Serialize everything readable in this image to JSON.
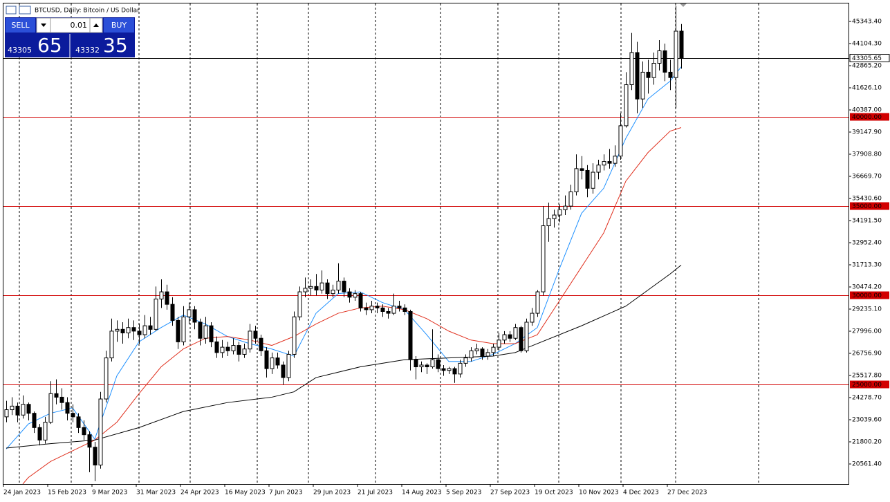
{
  "chart_data": {
    "type": "candlestick",
    "title": "BTCUSD, Daily:  Bitcoin / US Dollar",
    "categories": [
      "24 Jan 2023",
      null,
      null,
      null,
      null,
      null,
      null,
      null,
      "15 Feb 2023",
      null,
      null,
      null,
      null,
      null,
      null,
      null,
      "9 Mar 2023",
      null,
      null,
      null,
      null,
      null,
      null,
      null,
      "31 Mar 2023",
      null,
      null,
      null,
      null,
      null,
      null,
      null,
      "24 Apr 2023",
      null,
      null,
      null,
      null,
      null,
      null,
      null,
      "16 May 2023",
      null,
      null,
      null,
      null,
      null,
      null,
      null,
      "7 Jun 2023",
      null,
      null,
      null,
      null,
      null,
      null,
      null,
      "29 Jun 2023",
      null,
      null,
      null,
      null,
      null,
      null,
      null,
      "21 Jul 2023",
      null,
      null,
      null,
      null,
      null,
      null,
      null,
      "14 Aug 2023",
      null,
      null,
      null,
      null,
      null,
      null,
      null,
      "5 Sep 2023",
      null,
      null,
      null,
      null,
      null,
      null,
      null,
      "27 Sep 2023",
      null,
      null,
      null,
      null,
      null,
      null,
      null,
      "19 Oct 2023",
      null,
      null,
      null,
      null,
      null,
      null,
      null,
      "10 Nov 2023",
      null,
      null,
      null,
      null,
      null,
      null,
      null,
      "4 Dec 2023",
      null,
      null,
      null,
      null,
      null,
      null,
      null,
      "27 Dec 2023",
      null,
      null
    ],
    "ohlc": [
      [
        23200,
        24100,
        22900,
        23600
      ],
      [
        23600,
        24300,
        23300,
        23800
      ],
      [
        23800,
        24000,
        22900,
        23300
      ],
      [
        23300,
        24400,
        23100,
        23900
      ],
      [
        23900,
        24000,
        23000,
        23400
      ],
      [
        23400,
        23500,
        22300,
        22600
      ],
      [
        22600,
        22800,
        21600,
        21900
      ],
      [
        21900,
        23200,
        21700,
        22900
      ],
      [
        22900,
        25200,
        22800,
        24500
      ],
      [
        24500,
        25300,
        23900,
        24300
      ],
      [
        24300,
        24800,
        23600,
        24000
      ],
      [
        24000,
        24300,
        23000,
        23400
      ],
      [
        23400,
        23900,
        22900,
        23200
      ],
      [
        23200,
        23400,
        22300,
        22600
      ],
      [
        22600,
        23000,
        21900,
        22200
      ],
      [
        22200,
        22400,
        20100,
        21500
      ],
      [
        21500,
        21800,
        19600,
        20500
      ],
      [
        20500,
        24600,
        20300,
        24200
      ],
      [
        24200,
        26900,
        24000,
        26500
      ],
      [
        26500,
        28700,
        26300,
        28000
      ],
      [
        28000,
        28600,
        27400,
        28100
      ],
      [
        28100,
        28500,
        27300,
        27900
      ],
      [
        27900,
        28700,
        27600,
        28200
      ],
      [
        28200,
        28600,
        27500,
        28000
      ],
      [
        28000,
        28400,
        27300,
        27800
      ],
      [
        27800,
        28900,
        27600,
        28300
      ],
      [
        28300,
        28800,
        27800,
        28100
      ],
      [
        28100,
        30500,
        28000,
        29800
      ],
      [
        29800,
        30900,
        29300,
        30200
      ],
      [
        30200,
        30600,
        29200,
        29500
      ],
      [
        29500,
        29900,
        28300,
        28600
      ],
      [
        28600,
        28800,
        27000,
        27400
      ],
      [
        27400,
        29400,
        27200,
        28800
      ],
      [
        28800,
        29600,
        28400,
        29200
      ],
      [
        29200,
        29400,
        28100,
        28500
      ],
      [
        28500,
        28700,
        27200,
        27600
      ],
      [
        27600,
        28800,
        27300,
        28300
      ],
      [
        28300,
        28500,
        27100,
        27400
      ],
      [
        27400,
        27700,
        26500,
        26800
      ],
      [
        26800,
        27500,
        26500,
        27100
      ],
      [
        27100,
        27400,
        26600,
        26900
      ],
      [
        26900,
        27600,
        26700,
        27200
      ],
      [
        27200,
        27400,
        26300,
        26700
      ],
      [
        26700,
        27300,
        26500,
        27000
      ],
      [
        27000,
        28400,
        26800,
        28000
      ],
      [
        28000,
        28300,
        27300,
        27600
      ],
      [
        27600,
        27800,
        26600,
        26900
      ],
      [
        26900,
        27100,
        25400,
        25900
      ],
      [
        25900,
        26800,
        25600,
        26500
      ],
      [
        26500,
        26800,
        25900,
        26100
      ],
      [
        26100,
        26300,
        25000,
        25400
      ],
      [
        25400,
        26900,
        25200,
        26700
      ],
      [
        26700,
        29100,
        26500,
        28800
      ],
      [
        28800,
        30500,
        28600,
        30200
      ],
      [
        30200,
        31000,
        29900,
        30400
      ],
      [
        30400,
        30900,
        30000,
        30500
      ],
      [
        30500,
        31200,
        30000,
        30300
      ],
      [
        30300,
        31400,
        30100,
        30700
      ],
      [
        30700,
        30900,
        29800,
        30100
      ],
      [
        30100,
        30600,
        29900,
        30300
      ],
      [
        30300,
        31800,
        30100,
        30800
      ],
      [
        30800,
        31000,
        29900,
        30200
      ],
      [
        30200,
        30400,
        29600,
        29900
      ],
      [
        29900,
        30300,
        29700,
        30100
      ],
      [
        30100,
        30200,
        29100,
        29300
      ],
      [
        29300,
        29600,
        28900,
        29200
      ],
      [
        29200,
        29700,
        29000,
        29400
      ],
      [
        29400,
        29600,
        29000,
        29300
      ],
      [
        29300,
        29500,
        28800,
        29100
      ],
      [
        29100,
        29300,
        28700,
        29000
      ],
      [
        29000,
        30100,
        28900,
        29400
      ],
      [
        29400,
        29700,
        29100,
        29300
      ],
      [
        29300,
        29500,
        28900,
        29100
      ],
      [
        29100,
        29200,
        25800,
        26400
      ],
      [
        26400,
        26600,
        25300,
        26000
      ],
      [
        26000,
        26300,
        25700,
        26100
      ],
      [
        26100,
        26200,
        25600,
        26000
      ],
      [
        26000,
        28100,
        25900,
        26400
      ],
      [
        26400,
        26700,
        25700,
        25900
      ],
      [
        25900,
        26100,
        25500,
        25800
      ],
      [
        25800,
        26000,
        25600,
        25900
      ],
      [
        25900,
        26000,
        25100,
        25600
      ],
      [
        25600,
        26400,
        25400,
        26200
      ],
      [
        26200,
        26700,
        26000,
        26500
      ],
      [
        26500,
        27100,
        26300,
        26900
      ],
      [
        26900,
        27300,
        26700,
        27000
      ],
      [
        27000,
        27100,
        26400,
        26600
      ],
      [
        26600,
        27000,
        26400,
        26800
      ],
      [
        26800,
        27300,
        26600,
        27100
      ],
      [
        27100,
        27900,
        26900,
        27500
      ],
      [
        27500,
        28000,
        27300,
        27800
      ],
      [
        27800,
        28000,
        27400,
        27600
      ],
      [
        27600,
        28400,
        27500,
        28200
      ],
      [
        28200,
        28300,
        26800,
        26900
      ],
      [
        26900,
        28700,
        26800,
        28500
      ],
      [
        28500,
        29300,
        28300,
        29000
      ],
      [
        29000,
        30300,
        28800,
        30200
      ],
      [
        30200,
        35000,
        30000,
        33900
      ],
      [
        33900,
        35200,
        33000,
        34300
      ],
      [
        34300,
        34800,
        33800,
        34500
      ],
      [
        34500,
        35100,
        34100,
        34800
      ],
      [
        34800,
        35600,
        34500,
        35000
      ],
      [
        35000,
        36200,
        34800,
        35800
      ],
      [
        35800,
        37900,
        35600,
        37100
      ],
      [
        37100,
        37800,
        36500,
        37000
      ],
      [
        37000,
        37300,
        35500,
        36000
      ],
      [
        36000,
        37400,
        35700,
        36900
      ],
      [
        36900,
        37600,
        36500,
        37300
      ],
      [
        37300,
        37900,
        37000,
        37500
      ],
      [
        37500,
        38200,
        37100,
        37400
      ],
      [
        37400,
        38400,
        37200,
        37800
      ],
      [
        37800,
        40200,
        37600,
        39500
      ],
      [
        39500,
        42500,
        39400,
        41800
      ],
      [
        41800,
        44700,
        41500,
        43600
      ],
      [
        43600,
        44200,
        40200,
        41000
      ],
      [
        41000,
        43100,
        40500,
        42500
      ],
      [
        42500,
        43200,
        41300,
        42200
      ],
      [
        42200,
        43600,
        41800,
        43000
      ],
      [
        43000,
        44300,
        42600,
        43700
      ],
      [
        43700,
        44100,
        42000,
        42500
      ],
      [
        42500,
        43200,
        41500,
        42200
      ],
      [
        42200,
        46200,
        40500,
        44800
      ],
      [
        44800,
        45200,
        42700,
        43300
      ]
    ],
    "bull_color": "#ffffff",
    "bear_color": "#000000",
    "wick_color": "#000000",
    "overlays": [
      {
        "color": "#1e90ff",
        "x": [
          0,
          4,
          8,
          12,
          16,
          20,
          24,
          28,
          32,
          36,
          40,
          44,
          48,
          52,
          56,
          60,
          64,
          68,
          72,
          76,
          80,
          84,
          88,
          92,
          96,
          100,
          104,
          108,
          112,
          116,
          120,
          122
        ],
        "values": [
          21400,
          22800,
          23400,
          23700,
          21950,
          25500,
          27400,
          28200,
          28900,
          28400,
          27700,
          27300,
          27000,
          26600,
          29000,
          30100,
          30200,
          29600,
          29200,
          27800,
          26300,
          26300,
          26700,
          27300,
          28200,
          31500,
          34600,
          36000,
          38800,
          41000,
          42000,
          42800
        ]
      },
      {
        "color": "#e0301e",
        "x": [
          3,
          4,
          8,
          12,
          16,
          20,
          24,
          28,
          32,
          36,
          40,
          44,
          48,
          52,
          56,
          60,
          64,
          68,
          72,
          76,
          80,
          84,
          88,
          92,
          96,
          100,
          104,
          108,
          112,
          116,
          120,
          122
        ],
        "values": [
          19440,
          19800,
          20700,
          21300,
          21900,
          22900,
          24500,
          26000,
          27000,
          27600,
          27700,
          27500,
          27200,
          27700,
          28400,
          29000,
          29300,
          29400,
          29200,
          28700,
          28000,
          27500,
          27300,
          27300,
          27800,
          29700,
          31600,
          33500,
          36400,
          38000,
          39200,
          39400
        ]
      },
      {
        "color": "#000000",
        "x": [
          0,
          8,
          16,
          24,
          32,
          40,
          48,
          52,
          56,
          64,
          72,
          80,
          88,
          92,
          96,
          104,
          112,
          116,
          120,
          122
        ],
        "values": [
          21450,
          21700,
          21900,
          22600,
          23500,
          24000,
          24300,
          24600,
          25400,
          26000,
          26400,
          26500,
          26600,
          26800,
          27300,
          28300,
          29400,
          30300,
          31200,
          31700
        ]
      }
    ],
    "levels": [
      {
        "value": 40000,
        "label": "40000.00",
        "color": "#d20000"
      },
      {
        "value": 35000,
        "label": "35000.00",
        "color": "#d20000"
      },
      {
        "value": 30000,
        "label": "30000.00",
        "color": "#d20000"
      },
      {
        "value": 25000,
        "label": "25000.00",
        "color": "#d20000"
      }
    ],
    "price_line": {
      "value": 43305.65,
      "label": "43305.65",
      "color": "#000000"
    },
    "ylim": [
      19438,
      46350
    ],
    "yticks": [
      {
        "value": 45343.4,
        "label": "45343.40"
      },
      {
        "value": 44104.3,
        "label": "44104.30"
      },
      {
        "value": 42865.2,
        "label": "42865.20"
      },
      {
        "value": 41626.1,
        "label": "41626.10"
      },
      {
        "value": 40387,
        "label": "40387.00"
      },
      {
        "value": 39147.9,
        "label": "39147.90"
      },
      {
        "value": 37908.8,
        "label": "37908.80"
      },
      {
        "value": 36669.7,
        "label": "36669.70"
      },
      {
        "value": 35430.6,
        "label": "35430.60"
      },
      {
        "value": 34191.5,
        "label": "34191.50"
      },
      {
        "value": 32952.4,
        "label": "32952.40"
      },
      {
        "value": 31713.3,
        "label": "31713.30"
      },
      {
        "value": 30474.2,
        "label": "30474.20"
      },
      {
        "value": 29235.1,
        "label": "29235.10"
      },
      {
        "value": 27996,
        "label": "27996.00"
      },
      {
        "value": 26756.9,
        "label": "26756.90"
      },
      {
        "value": 25517.8,
        "label": "25517.80"
      },
      {
        "value": 24278.7,
        "label": "24278.70"
      },
      {
        "value": 23039.6,
        "label": "23039.60"
      },
      {
        "value": 21800.2,
        "label": "21800.20"
      },
      {
        "value": 20561.4,
        "label": "20561.40"
      }
    ]
  },
  "trade_panel": {
    "sell": "SELL",
    "buy": "BUY",
    "volume": "0.01",
    "sell_price_main": "43305",
    "sell_price_big": "65",
    "buy_price_main": "43332",
    "buy_price_big": "35"
  }
}
